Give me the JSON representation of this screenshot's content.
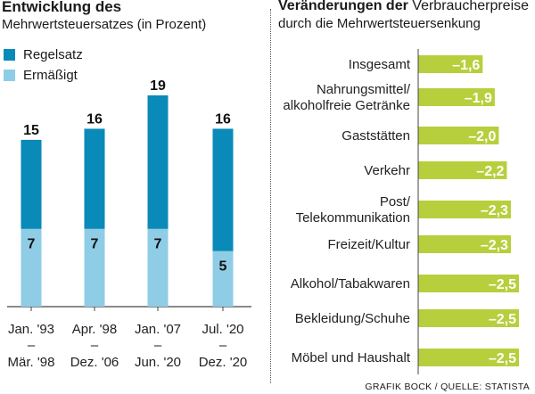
{
  "left": {
    "title": "Entwicklung des",
    "subtitle": "Mehrwertsteuersatzes (in Prozent)"
  },
  "right": {
    "title_bold": "Veränderungen der",
    "title_rest": " Verbraucherpreise",
    "subtitle": "durch die Mehrwertsteuersenkung"
  },
  "source": "GRAFIK BOCK / QUELLE: STATISTA",
  "colors": {
    "regelsatz": "#0a8ab8",
    "ermaessigt": "#8fcde6",
    "change_bar": "#b7cf3c"
  },
  "chart_data": [
    {
      "type": "bar",
      "stacked": false,
      "overlapping": true,
      "categories": [
        [
          "Jan. '93",
          "–",
          "Mär. '98"
        ],
        [
          "Apr. '98",
          "–",
          "Dez. '06"
        ],
        [
          "Jan. '07",
          "–",
          "Jun. '20"
        ],
        [
          "Jul. '20",
          "–",
          "Dez. '20"
        ]
      ],
      "series": [
        {
          "name": "Regelsatz",
          "values": [
            15,
            16,
            19,
            16
          ],
          "labels": [
            "15",
            "16",
            "19",
            "16"
          ]
        },
        {
          "name": "Ermäßigt",
          "values": [
            7,
            7,
            7,
            5
          ],
          "labels": [
            "7",
            "7",
            "7",
            "5"
          ]
        }
      ],
      "ylim": [
        0,
        19
      ],
      "legend": "top-left",
      "grid": false
    },
    {
      "type": "bar",
      "orientation": "horizontal",
      "categories": [
        [
          "Insgesamt"
        ],
        [
          "Nahrungsmittel/",
          "alkoholfreie Getränke"
        ],
        [
          "Gaststätten"
        ],
        [
          "Verkehr"
        ],
        [
          "Post/",
          "Telekommunikation"
        ],
        [
          "Freizeit/Kultur"
        ],
        [
          "Alkohol/Tabakwaren"
        ],
        [
          "Bekleidung/Schuhe"
        ],
        [
          "Möbel und Haushalt"
        ]
      ],
      "values": [
        -1.6,
        -1.9,
        -2.0,
        -2.2,
        -2.3,
        -2.3,
        -2.5,
        -2.5,
        -2.5
      ],
      "labels": [
        "–1,6",
        "–1,9",
        "–2,0",
        "–2,2",
        "–2,3",
        "–2,3",
        "–2,5",
        "–2,5",
        "–2,5"
      ],
      "xlim": [
        0,
        -2.5
      ],
      "grid": false
    }
  ]
}
